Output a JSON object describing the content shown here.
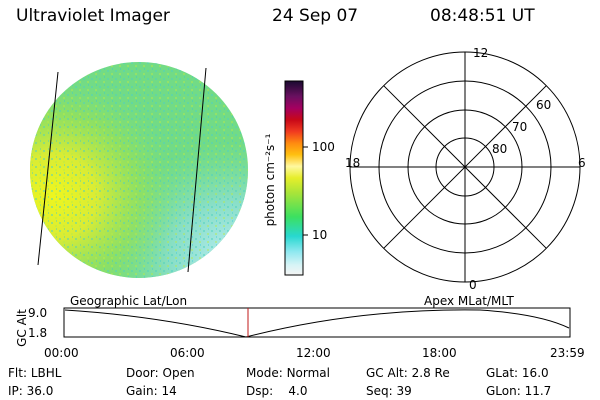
{
  "header": {
    "instrument": "Ultraviolet Imager",
    "date": "24 Sep 07",
    "time": "08:48:51 UT"
  },
  "colorbar": {
    "unit_label": "photon cm⁻²s⁻¹",
    "ticks": [
      "100",
      "10"
    ],
    "scale": "log"
  },
  "polar_plot": {
    "mlt_labels": [
      "12",
      "18",
      "6",
      "0"
    ],
    "lat_labels": [
      "60",
      "70",
      "80"
    ]
  },
  "timeline": {
    "left_title": "Geographic Lat/Lon",
    "right_title": "Apex MLat/MLT",
    "y_axis_label": "GC Alt",
    "y_ticks": [
      "9.0",
      "1.8"
    ],
    "x_ticks": [
      "00:00",
      "06:00",
      "12:00",
      "18:00",
      "23:59"
    ],
    "marker_time": "08:48:51"
  },
  "status": {
    "row1": [
      {
        "label": "Flt:",
        "value": "LBHL"
      },
      {
        "label": "Door:",
        "value": "Open"
      },
      {
        "label": "Mode:",
        "value": "Normal"
      },
      {
        "label": "GC Alt:",
        "value": "2.8 Re"
      },
      {
        "label": "GLat:",
        "value": "16.0"
      }
    ],
    "row2": [
      {
        "label": "IP:",
        "value": "36.0"
      },
      {
        "label": "Gain:",
        "value": "14"
      },
      {
        "label": "Dsp:",
        "value": "4.0"
      },
      {
        "label": "Seq:",
        "value": "39"
      },
      {
        "label": "GLon:",
        "value": "11.7"
      }
    ]
  },
  "colors": {
    "disk_base": "#7fe07a",
    "disk_bright": "#e4f02a",
    "disk_dim": "#a8e8f0",
    "marker": "#c01818"
  }
}
